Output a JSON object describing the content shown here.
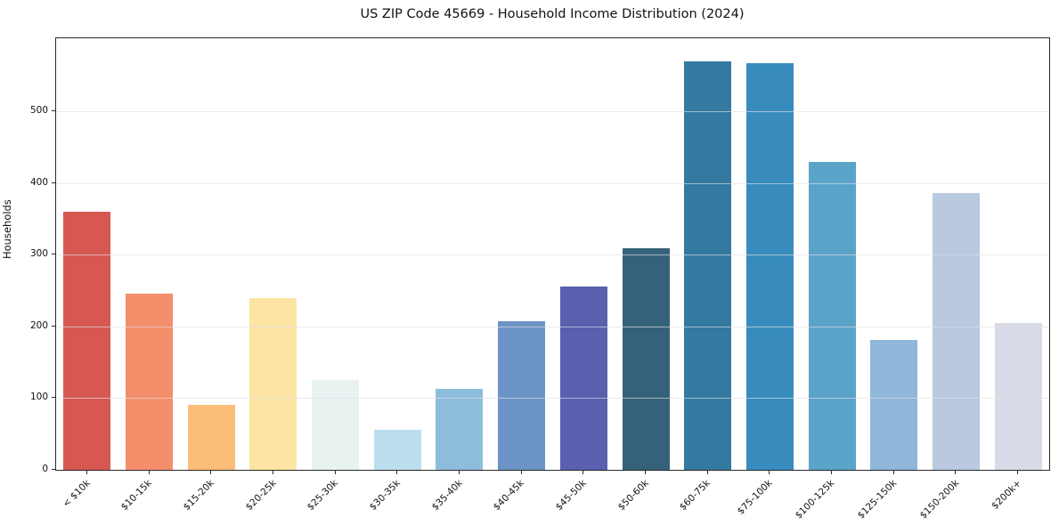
{
  "chart_data": {
    "type": "bar",
    "title": "US ZIP Code 45669 - Household Income Distribution (2024)",
    "xlabel": "",
    "ylabel": "Households",
    "categories": [
      "< $10k",
      "$10-15k",
      "$15-20k",
      "$20-25k",
      "$25-30k",
      "$30-35k",
      "$35-40k",
      "$40-45k",
      "$45-50k",
      "$50-60k",
      "$60-75k",
      "$75-100k",
      "$100-125k",
      "$125-150k",
      "$150-200k",
      "$200k+"
    ],
    "values": [
      360,
      246,
      91,
      239,
      126,
      56,
      113,
      207,
      256,
      309,
      570,
      567,
      430,
      181,
      386,
      205
    ],
    "bar_colors": [
      "#d65850",
      "#f58e6b",
      "#fcbd79",
      "#fde4a4",
      "#e7f2f1",
      "#bbdfec",
      "#8ebddc",
      "#6b93c6",
      "#5a5fae",
      "#35627a",
      "#34799f",
      "#378cbd",
      "#5aa3c9",
      "#8fb7d9",
      "#b8c9e0",
      "#d8dae8"
    ],
    "ylim": [
      0,
      602
    ],
    "yticks": [
      0,
      100,
      200,
      300,
      400,
      500
    ],
    "grid": true,
    "legend_position": "none",
    "background_color": "#ffffff",
    "spine_color": "#2a2a2a",
    "gridline_color": "#dededd"
  }
}
